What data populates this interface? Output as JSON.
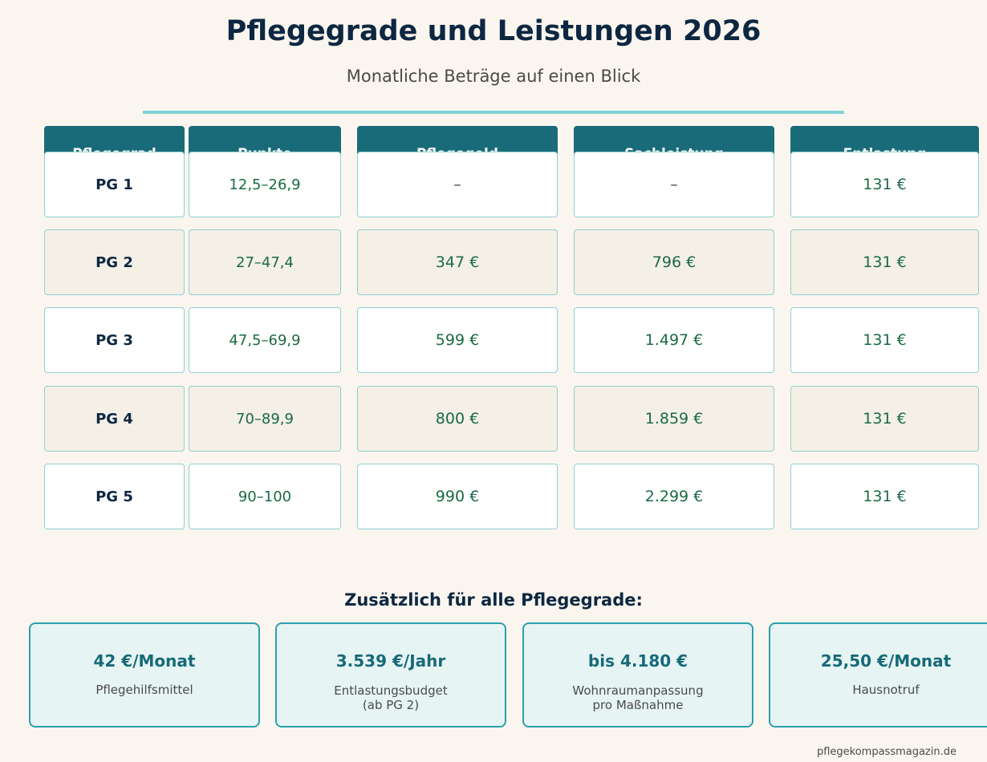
{
  "header": {
    "title": "Pflegegrade und Leistungen 2026",
    "subtitle": "Monatliche Beträge auf einen Blick"
  },
  "table": {
    "columns": [
      "Pflegegrad",
      "Punkte",
      "Pflegegeld",
      "Sachleistung",
      "Entlastung"
    ],
    "rows": [
      {
        "grade": "PG 1",
        "points": "12,5–26,9",
        "pflegegeld": "–",
        "sachleistung": "–",
        "entlastung": "131 €"
      },
      {
        "grade": "PG 2",
        "points": "27–47,4",
        "pflegegeld": "347 €",
        "sachleistung": "796 €",
        "entlastung": "131 €"
      },
      {
        "grade": "PG 3",
        "points": "47,5–69,9",
        "pflegegeld": "599 €",
        "sachleistung": "1.497 €",
        "entlastung": "131 €"
      },
      {
        "grade": "PG 4",
        "points": "70–89,9",
        "pflegegeld": "800 €",
        "sachleistung": "1.859 €",
        "entlastung": "131 €"
      },
      {
        "grade": "PG 5",
        "points": "90–100",
        "pflegegeld": "990 €",
        "sachleistung": "2.299 €",
        "entlastung": "131 €"
      }
    ]
  },
  "extras": {
    "title": "Zusätzlich für alle Pflegegrade:",
    "cards": [
      {
        "value": "42 €/Monat",
        "label": "Pflegehilfsmittel"
      },
      {
        "value": "3.539 €/Jahr",
        "label": "Entlastungsbudget\n(ab PG 2)"
      },
      {
        "value": "bis 4.180 €",
        "label": "Wohnraumanpassung\npro Maßnahme"
      },
      {
        "value": "25,50 €/Monat",
        "label": "Hausnotruf"
      }
    ]
  },
  "footer": {
    "source": "pflegekompassmagazin.de"
  },
  "colors": {
    "header_bg": "#1a6b7a",
    "accent_rule": "#7fd3d6",
    "value_green": "#1a6a44",
    "card_border": "#2ba0ad"
  }
}
